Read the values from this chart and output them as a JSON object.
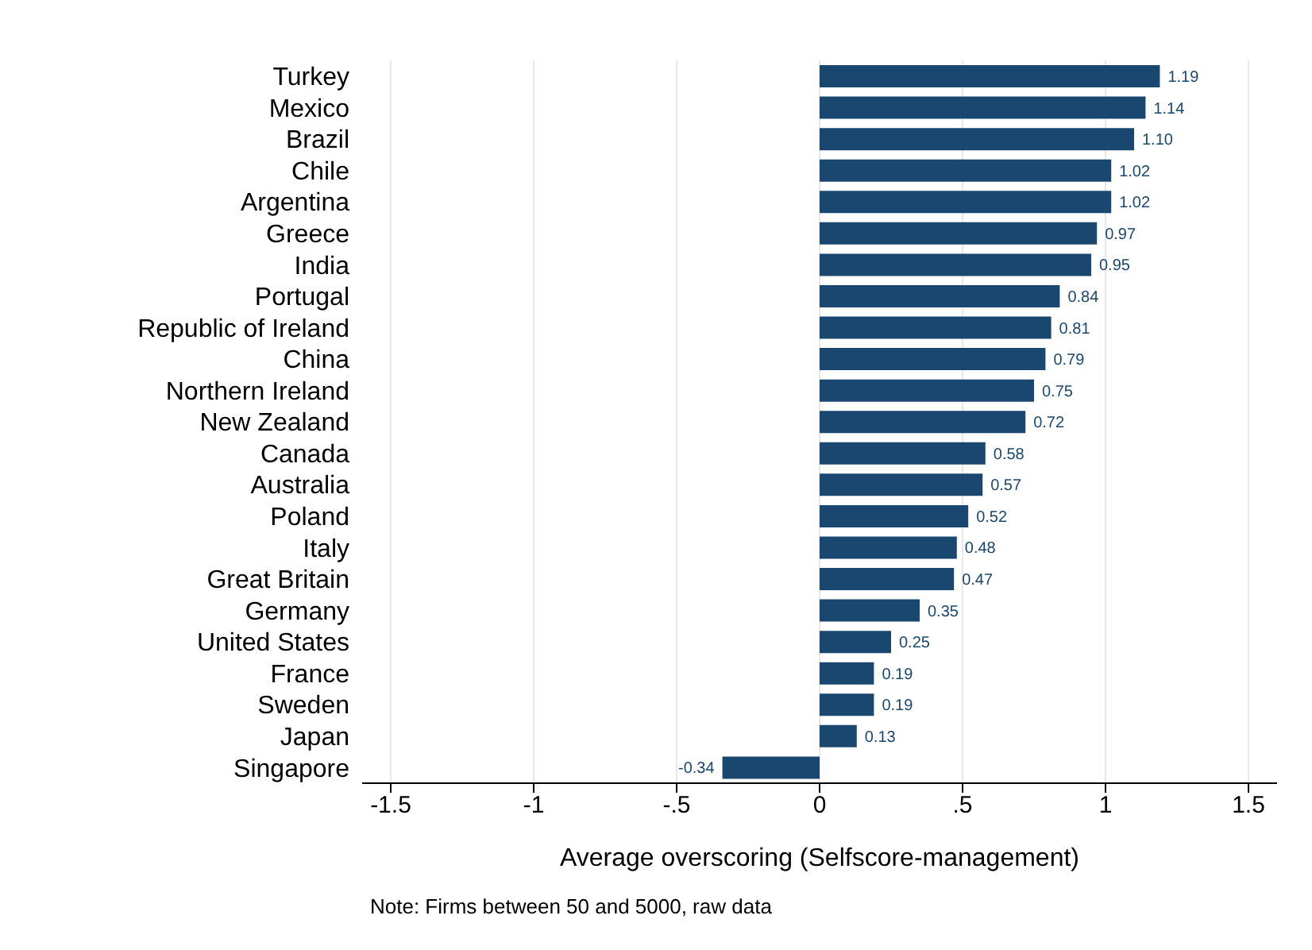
{
  "chart_data": {
    "type": "bar",
    "orientation": "horizontal",
    "xlabel": "Average overscoring (Selfscore-management)",
    "categories": [
      "Turkey",
      "Mexico",
      "Brazil",
      "Chile",
      "Argentina",
      "Greece",
      "India",
      "Portugal",
      "Republic of Ireland",
      "China",
      "Northern Ireland",
      "New Zealand",
      "Canada",
      "Australia",
      "Poland",
      "Italy",
      "Great Britain",
      "Germany",
      "United States",
      "France",
      "Sweden",
      "Japan",
      "Singapore"
    ],
    "values": [
      1.19,
      1.14,
      1.1,
      1.02,
      1.02,
      0.97,
      0.95,
      0.84,
      0.81,
      0.79,
      0.75,
      0.72,
      0.58,
      0.57,
      0.52,
      0.48,
      0.47,
      0.35,
      0.25,
      0.19,
      0.19,
      0.13,
      -0.34
    ],
    "value_labels": [
      "1.19",
      "1.14",
      "1.10",
      "1.02",
      "1.02",
      "0.97",
      "0.95",
      "0.84",
      "0.81",
      "0.79",
      "0.75",
      "0.72",
      "0.58",
      "0.57",
      "0.52",
      "0.48",
      "0.47",
      "0.35",
      "0.25",
      "0.19",
      "0.19",
      "0.13",
      "-0.34"
    ],
    "color": "#1a476f",
    "xlim": [
      -1.6,
      1.6
    ],
    "xticks": [
      {
        "value": -1.5,
        "label": "-1.5"
      },
      {
        "value": -1,
        "label": "-1"
      },
      {
        "value": -0.5,
        "label": "-.5"
      },
      0,
      {
        "value": 0.5,
        "label": ".5"
      },
      1,
      1.5
    ],
    "grid": "x",
    "legend": false,
    "annotations": [
      "Note: Firms between 50 and 5000, raw data"
    ]
  }
}
